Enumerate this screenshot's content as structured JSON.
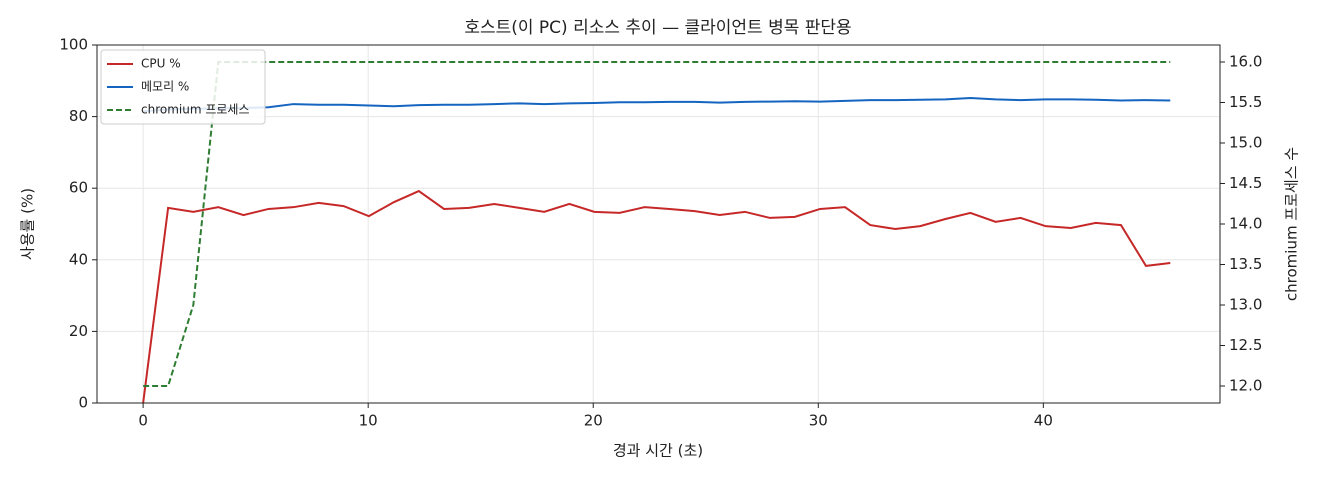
{
  "chart_data": {
    "type": "line",
    "title": "호스트(이 PC) 리소스 추이 — 클라이언트 병목 판단용",
    "x_label": "경과 시간 (초)",
    "y_label": "사용률 (%)",
    "y2_label": "chromium 프로세스 수",
    "x": [
      0,
      1.11,
      2.23,
      3.34,
      4.46,
      5.57,
      6.68,
      7.8,
      8.91,
      10.03,
      11.14,
      12.25,
      13.37,
      14.48,
      15.6,
      16.71,
      17.82,
      18.94,
      20.05,
      21.17,
      22.28,
      23.39,
      24.51,
      25.62,
      26.74,
      27.85,
      28.96,
      30.08,
      31.19,
      32.31,
      33.42,
      34.53,
      35.65,
      36.76,
      37.88,
      38.99,
      40.1,
      41.22,
      42.33,
      43.45,
      44.56,
      45.64
    ],
    "series": [
      {
        "name": "CPU %",
        "color": "#c62828",
        "dash": false,
        "values": [
          0,
          54.5,
          53.4,
          54.7,
          52.5,
          54.2,
          54.7,
          55.9,
          55.0,
          52.2,
          56.1,
          59.2,
          54.2,
          54.5,
          55.6,
          54.5,
          53.4,
          55.6,
          53.4,
          53.1,
          54.7,
          54.2,
          53.6,
          52.5,
          53.4,
          51.7,
          52.0,
          54.2,
          54.7,
          49.7,
          48.6,
          49.4,
          51.4,
          53.1,
          50.6,
          51.7,
          49.4,
          48.9,
          50.3,
          49.7,
          38.3,
          39.1
        ]
      },
      {
        "name": "메모리 %",
        "color": "#1565c0",
        "dash": false,
        "values": [
          81.5,
          82.0,
          82.2,
          82.3,
          82.4,
          82.6,
          83.5,
          83.3,
          83.3,
          83.1,
          82.9,
          83.2,
          83.3,
          83.3,
          83.5,
          83.7,
          83.5,
          83.7,
          83.8,
          84.0,
          84.0,
          84.1,
          84.1,
          83.9,
          84.1,
          84.2,
          84.3,
          84.2,
          84.4,
          84.6,
          84.6,
          84.7,
          84.8,
          85.2,
          84.8,
          84.6,
          84.8,
          84.8,
          84.7,
          84.5,
          84.6,
          84.5
        ]
      },
      {
        "name": "chromium 프로세스",
        "color": "#2e7d32",
        "dash": true,
        "axis": "y2",
        "values": [
          12,
          12,
          13,
          16,
          16,
          16,
          16,
          16,
          16,
          16,
          16,
          16,
          16,
          16,
          16,
          16,
          16,
          16,
          16,
          16,
          16,
          16,
          16,
          16,
          16,
          16,
          16,
          16,
          16,
          16,
          16,
          16,
          16,
          16,
          16,
          16,
          16,
          16,
          16,
          16,
          16,
          16
        ]
      }
    ],
    "xlim": [
      -2.05,
      47.85
    ],
    "xticks": [
      0,
      10,
      20,
      30,
      40
    ],
    "ylim": [
      0,
      100
    ],
    "yticks": [
      0,
      20,
      40,
      60,
      80,
      100
    ],
    "y2lim": [
      11.79,
      16.21
    ],
    "y2ticks": [
      {
        "value": 12,
        "label": "12.0"
      },
      12.5,
      {
        "value": 13,
        "label": "13.0"
      },
      13.5,
      {
        "value": 14,
        "label": "14.0"
      },
      14.5,
      {
        "value": 15,
        "label": "15.0"
      },
      15.5,
      {
        "value": 16,
        "label": "16.0"
      }
    ],
    "grid": true,
    "legend": "upper-left"
  }
}
